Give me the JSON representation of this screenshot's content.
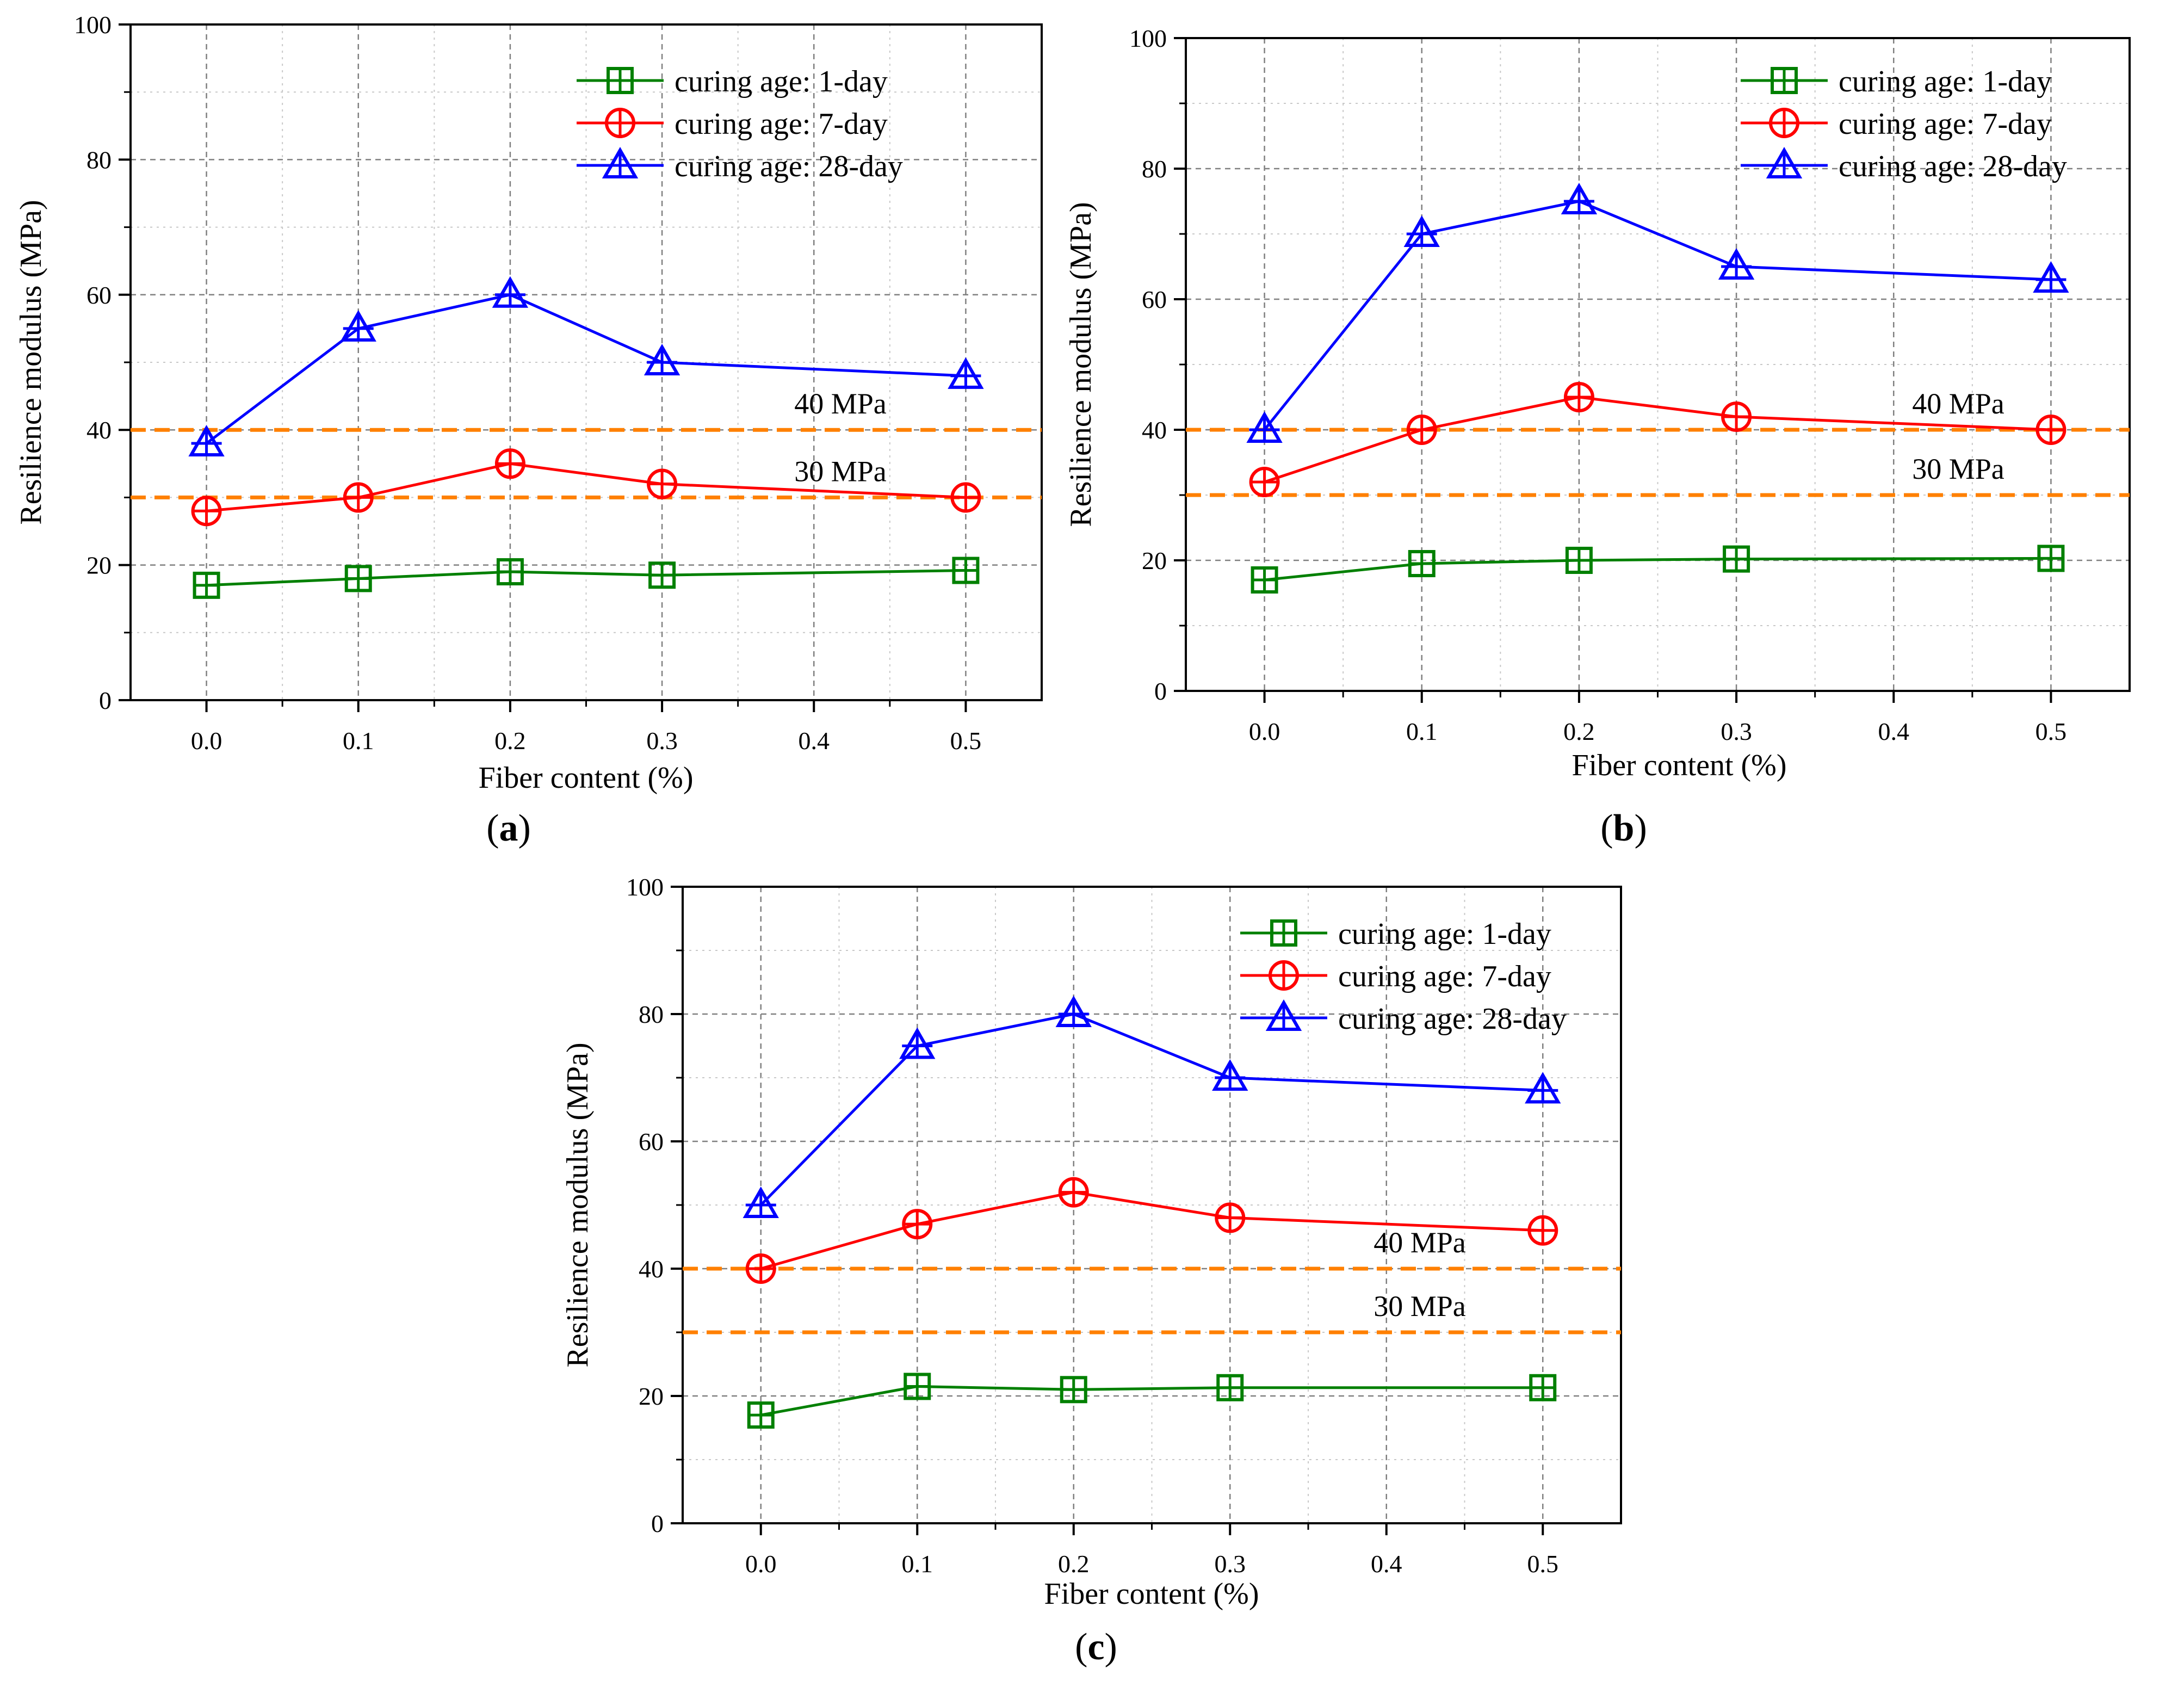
{
  "colors": {
    "series_1day": "#008000",
    "series_7day": "#ff0000",
    "series_28day": "#0000ff",
    "reference": "#ff8000",
    "grid": "#808080"
  },
  "chart_data": [
    {
      "panel": "a",
      "type": "line",
      "xlabel": "Fiber content (%)",
      "ylabel": "Resilience modulus (MPa)",
      "xlim": [
        -0.05,
        0.55
      ],
      "ylim": [
        0,
        100
      ],
      "xticks": [
        "0.0",
        "0.1",
        "0.2",
        "0.3",
        "0.4",
        "0.5"
      ],
      "yticks": [
        "0",
        "20",
        "40",
        "60",
        "80",
        "100"
      ],
      "x": [
        0.0,
        0.1,
        0.2,
        0.3,
        0.5
      ],
      "series": [
        {
          "name": "curing age: 1-day",
          "marker": "square",
          "values": [
            17,
            18,
            19,
            18.5,
            19.2
          ]
        },
        {
          "name": "curing age: 7-day",
          "marker": "circle",
          "values": [
            28,
            30,
            35,
            32,
            30
          ]
        },
        {
          "name": "curing age: 28-day",
          "marker": "triangle",
          "values": [
            38,
            55,
            60,
            50,
            48
          ]
        }
      ],
      "reference_lines": [
        {
          "label": "40 MPa",
          "value": 40
        },
        {
          "label": "30 MPa",
          "value": 30
        }
      ],
      "legend_position": "top-right",
      "grid": true
    },
    {
      "panel": "b",
      "type": "line",
      "xlabel": "Fiber content (%)",
      "ylabel": "Resilience modulus (MPa)",
      "xlim": [
        -0.05,
        0.55
      ],
      "ylim": [
        0,
        100
      ],
      "xticks": [
        "0.0",
        "0.1",
        "0.2",
        "0.3",
        "0.4",
        "0.5"
      ],
      "yticks": [
        "0",
        "20",
        "40",
        "60",
        "80",
        "100"
      ],
      "x": [
        0.0,
        0.1,
        0.2,
        0.3,
        0.5
      ],
      "series": [
        {
          "name": "curing age: 1-day",
          "marker": "square",
          "values": [
            17,
            19.5,
            20,
            20.2,
            20.3
          ]
        },
        {
          "name": "curing age: 7-day",
          "marker": "circle",
          "values": [
            32,
            40,
            45,
            42,
            40
          ]
        },
        {
          "name": "curing age: 28-day",
          "marker": "triangle",
          "values": [
            40,
            70,
            75,
            65,
            63
          ]
        }
      ],
      "reference_lines": [
        {
          "label": "40 MPa",
          "value": 40
        },
        {
          "label": "30 MPa",
          "value": 30
        }
      ],
      "legend_position": "top-right",
      "grid": true
    },
    {
      "panel": "c",
      "type": "line",
      "xlabel": "Fiber content (%)",
      "ylabel": "Resilience modulus (MPa)",
      "xlim": [
        -0.05,
        0.55
      ],
      "ylim": [
        0,
        100
      ],
      "xticks": [
        "0.0",
        "0.1",
        "0.2",
        "0.3",
        "0.4",
        "0.5"
      ],
      "yticks": [
        "0",
        "20",
        "40",
        "60",
        "80",
        "100"
      ],
      "x": [
        0.0,
        0.1,
        0.2,
        0.3,
        0.5
      ],
      "series": [
        {
          "name": "curing age: 1-day",
          "marker": "square",
          "values": [
            17,
            21.5,
            21,
            21.3,
            21.3
          ]
        },
        {
          "name": "curing age: 7-day",
          "marker": "circle",
          "values": [
            40,
            47,
            52,
            48,
            46
          ]
        },
        {
          "name": "curing age: 28-day",
          "marker": "triangle",
          "values": [
            50,
            75,
            80,
            70,
            68
          ]
        }
      ],
      "reference_lines": [
        {
          "label": "40 MPa",
          "value": 40
        },
        {
          "label": "30 MPa",
          "value": 30
        }
      ],
      "legend_position": "top-right",
      "grid": true
    }
  ],
  "panel_labels": [
    "(a)",
    "(b)",
    "(c)"
  ]
}
